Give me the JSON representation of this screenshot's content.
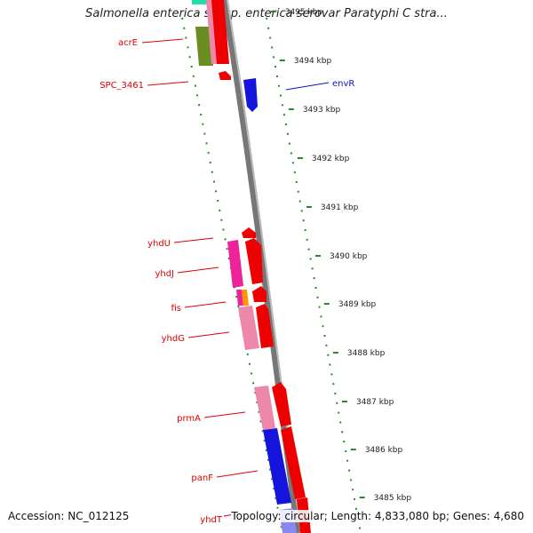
{
  "title": "Salmonella enterica subsp. enterica serovar Paratyphi C stra...",
  "accession": "Accession: NC_012125",
  "footer_info": "Topology: circular; Length: 4,833,080 bp; Genes: 4,680",
  "kbp_labels": [
    {
      "text": "3495 kbp",
      "faded": true
    },
    {
      "text": "3494 kbp"
    },
    {
      "text": "3493 kbp"
    },
    {
      "text": "3492 kbp"
    },
    {
      "text": "3491 kbp"
    },
    {
      "text": "3490 kbp"
    },
    {
      "text": "3489 kbp"
    },
    {
      "text": "3488 kbp"
    },
    {
      "text": "3487 kbp"
    },
    {
      "text": "3486 kbp"
    },
    {
      "text": "3485 kbp"
    }
  ],
  "gene_labels": [
    {
      "text": "acrE",
      "color": "#dd0000"
    },
    {
      "text": "SPC_3461",
      "color": "#dd0000"
    },
    {
      "text": "envR",
      "color": "#1010cc"
    },
    {
      "text": "yhdU",
      "color": "#dd0000"
    },
    {
      "text": "yhdJ",
      "color": "#dd0000"
    },
    {
      "text": "fis",
      "color": "#dd0000"
    },
    {
      "text": "yhdG",
      "color": "#dd0000"
    },
    {
      "text": "prmA",
      "color": "#dd0000"
    },
    {
      "text": "panF",
      "color": "#dd0000"
    },
    {
      "text": "yhdT",
      "color": "#dd0000"
    }
  ],
  "colors": {
    "backbone": "#888888",
    "tick": "#2a8a2a",
    "forward_gene": "#ee0000",
    "reverse_gene": "#0000ee",
    "pink_feature": "#ee88aa",
    "magenta_feature": "#ee2299",
    "olive_feature": "#6b8e23",
    "teal_feature": "#22ddaa",
    "orange_feature": "#ff9900"
  }
}
